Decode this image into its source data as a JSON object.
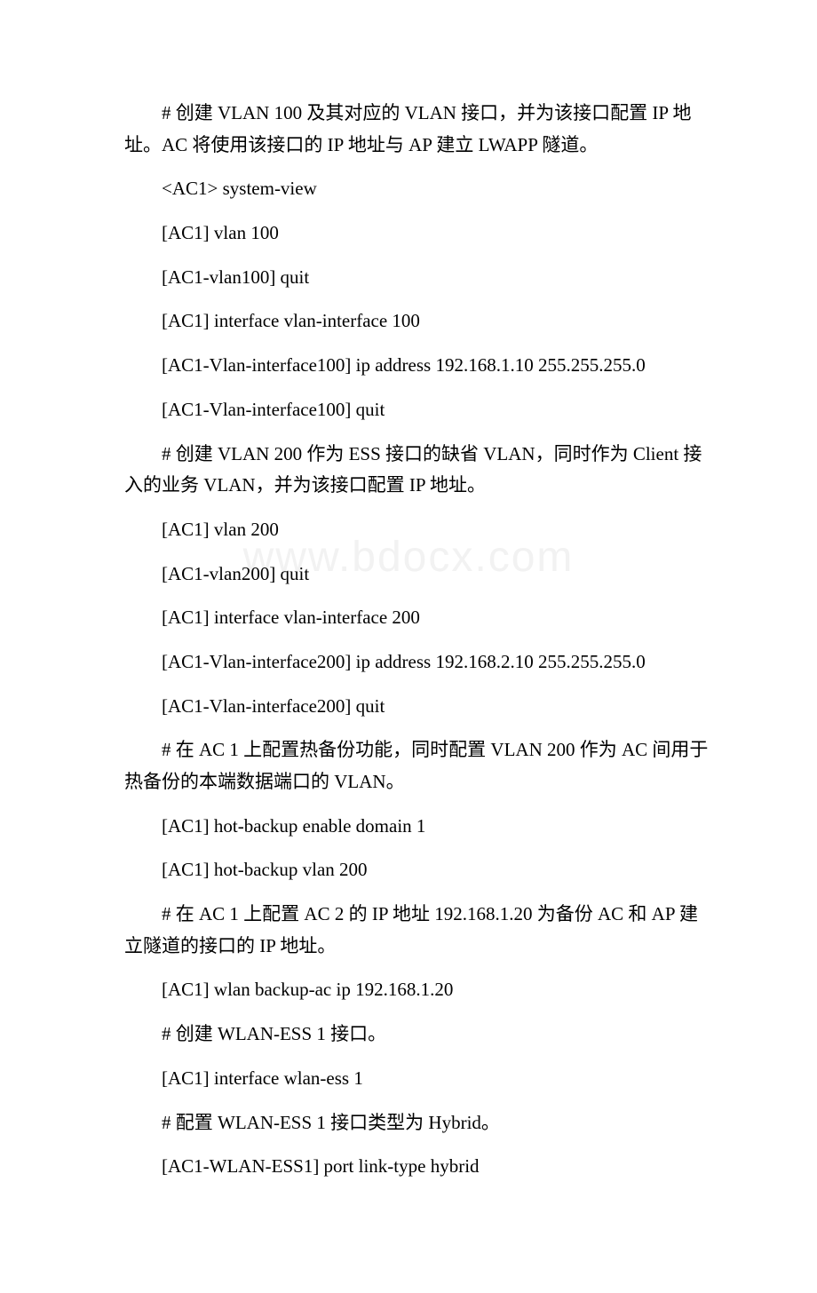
{
  "watermark": "www.bdocx.com",
  "paragraphs": [
    "# 创建 VLAN 100 及其对应的 VLAN 接口，并为该接口配置 IP 地址。AC 将使用该接口的 IP 地址与 AP 建立 LWAPP 隧道。",
    "<AC1> system-view",
    "[AC1] vlan 100",
    "[AC1-vlan100] quit",
    "[AC1] interface vlan-interface 100",
    "[AC1-Vlan-interface100] ip address 192.168.1.10 255.255.255.0",
    "[AC1-Vlan-interface100] quit",
    "# 创建 VLAN 200 作为 ESS 接口的缺省 VLAN，同时作为 Client 接入的业务 VLAN，并为该接口配置 IP 地址。",
    "[AC1] vlan 200",
    "[AC1-vlan200] quit",
    "[AC1] interface vlan-interface 200",
    "[AC1-Vlan-interface200] ip address 192.168.2.10 255.255.255.0",
    "[AC1-Vlan-interface200] quit",
    "# 在 AC 1 上配置热备份功能，同时配置 VLAN 200 作为 AC 间用于热备份的本端数据端口的 VLAN。",
    "[AC1] hot-backup enable domain 1",
    "[AC1] hot-backup vlan 200",
    "# 在 AC 1 上配置 AC 2 的 IP 地址 192.168.1.20 为备份 AC 和 AP 建立隧道的接口的 IP 地址。",
    "[AC1] wlan backup-ac ip 192.168.1.20",
    "# 创建 WLAN-ESS 1 接口。",
    "[AC1] interface wlan-ess 1",
    "# 配置 WLAN-ESS 1 接口类型为 Hybrid。",
    "[AC1-WLAN-ESS1] port link-type hybrid"
  ]
}
